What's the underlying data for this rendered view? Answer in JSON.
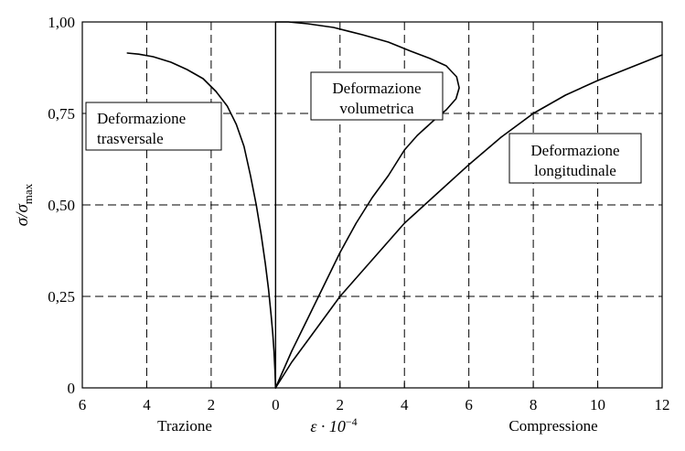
{
  "chart_data": {
    "type": "line",
    "xlabel": "ε · 10",
    "xlabel_exponent": "−4",
    "ylabel": "σ/σ",
    "ylabel_subscript": "max",
    "x_ticks": [
      "6",
      "4",
      "2",
      "0",
      "2",
      "4",
      "6",
      "8",
      "10",
      "12"
    ],
    "x_tick_values": [
      -6,
      -4,
      -2,
      0,
      2,
      4,
      6,
      8,
      10,
      12
    ],
    "y_ticks": [
      "0",
      "0,25",
      "0,50",
      "0,75",
      "1,00"
    ],
    "y_tick_values": [
      0,
      0.25,
      0.5,
      0.75,
      1.0
    ],
    "xlim": [
      -6,
      12
    ],
    "ylim": [
      0,
      1
    ],
    "grid": true,
    "side_labels": {
      "left": "Trazione",
      "right": "Compressione"
    },
    "series": [
      {
        "name": "Deformazione trasversale",
        "label_lines": [
          "Deformazione",
          "trasversale"
        ],
        "x": [
          0,
          -0.02,
          -0.05,
          -0.09,
          -0.14,
          -0.22,
          -0.32,
          -0.45,
          -0.6,
          -0.78,
          -0.98,
          -1.22,
          -1.5,
          -1.85,
          -2.25,
          -2.75,
          -3.25,
          -3.8,
          -4.25,
          -4.6
        ],
        "y": [
          0,
          0.05,
          0.1,
          0.15,
          0.2,
          0.27,
          0.34,
          0.42,
          0.5,
          0.58,
          0.66,
          0.72,
          0.77,
          0.81,
          0.845,
          0.87,
          0.89,
          0.905,
          0.912,
          0.915
        ]
      },
      {
        "name": "Deformazione volumetrica",
        "label_lines": [
          "Deformazione",
          "volumetrica"
        ],
        "x": [
          0,
          0.5,
          1.0,
          1.5,
          2.0,
          2.5,
          3.0,
          3.5,
          4.0,
          4.4,
          4.9,
          5.3,
          5.6,
          5.7,
          5.62,
          5.3,
          4.8,
          4.2,
          3.5,
          2.7,
          1.8,
          1.0,
          0.4,
          0
        ],
        "y": [
          0,
          0.1,
          0.19,
          0.28,
          0.37,
          0.45,
          0.52,
          0.58,
          0.65,
          0.69,
          0.73,
          0.76,
          0.79,
          0.82,
          0.85,
          0.88,
          0.9,
          0.92,
          0.945,
          0.965,
          0.985,
          0.995,
          1.0,
          1.0
        ]
      },
      {
        "name": "Deformazione longitudinale",
        "label_lines": [
          "Deformazione",
          "longitudinale"
        ],
        "x": [
          0,
          0.5,
          1.0,
          1.5,
          2.0,
          2.5,
          3.0,
          3.5,
          4.0,
          4.5,
          5.0,
          6.0,
          7.0,
          8.0,
          9.0,
          10.0,
          11.0,
          12.0
        ],
        "y": [
          0,
          0.07,
          0.13,
          0.19,
          0.25,
          0.3,
          0.35,
          0.4,
          0.45,
          0.49,
          0.53,
          0.61,
          0.685,
          0.75,
          0.8,
          0.84,
          0.875,
          0.91
        ]
      }
    ]
  }
}
